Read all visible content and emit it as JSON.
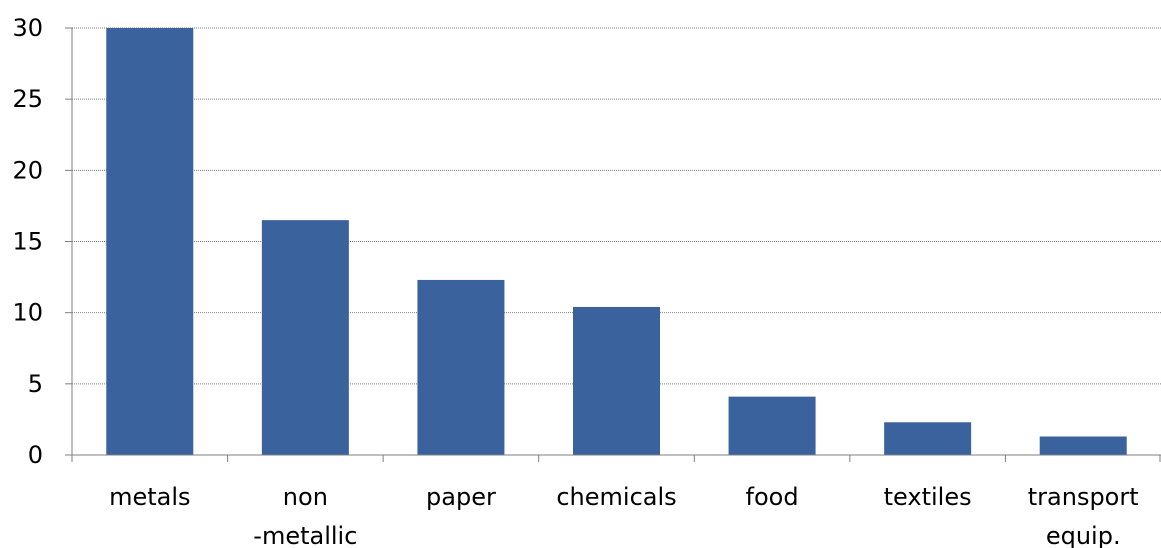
{
  "chart_data": {
    "type": "bar",
    "categories": [
      "metals",
      "non -metallic",
      "paper",
      "chemicals",
      "food",
      "textiles",
      "transport equip."
    ],
    "category_lines": [
      [
        "metals"
      ],
      [
        "non",
        "-metallic"
      ],
      [
        "paper"
      ],
      [
        "chemicals"
      ],
      [
        "food"
      ],
      [
        "textiles"
      ],
      [
        "transport",
        "equip."
      ]
    ],
    "values": [
      30,
      16.5,
      12.3,
      10.4,
      4.1,
      2.3,
      1.3
    ],
    "ylim": [
      0,
      30
    ],
    "yticks": [
      0,
      5,
      10,
      15,
      20,
      25,
      30
    ],
    "ytick_labels": [
      "0",
      "5",
      "10",
      "15",
      "20",
      "25",
      "30"
    ],
    "title": "",
    "xlabel": "",
    "ylabel": "",
    "grid": true,
    "colors": {
      "bar": "#3A629C",
      "grid": "#7f7f7f",
      "axis": "#7f7f7f"
    }
  }
}
